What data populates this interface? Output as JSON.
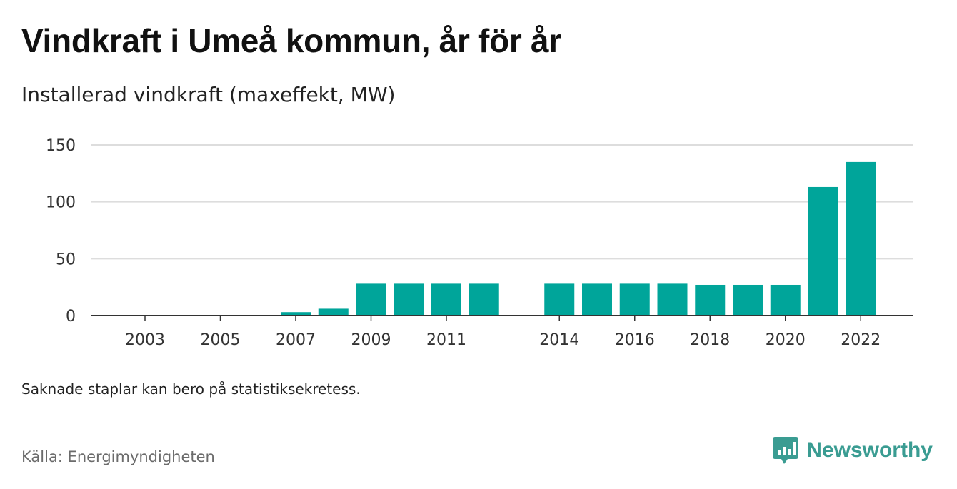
{
  "header": {
    "title": "Vindkraft i Umeå kommun, år för år",
    "subtitle": "Installerad vindkraft (maxeffekt, MW)"
  },
  "footer": {
    "note": "Saknade staplar kan bero på statistiksekretess.",
    "source": "Källa: Energimyndigheten",
    "brand": "Newsworthy"
  },
  "colors": {
    "bar": "#00a59a",
    "brand": "#3a9c92",
    "grid": "#dddddd",
    "axis": "#333333"
  },
  "chart_data": {
    "type": "bar",
    "categories": [
      "2003",
      "2004",
      "2005",
      "2006",
      "2007",
      "2008",
      "2009",
      "2010",
      "2011",
      "2012",
      "2014",
      "2015",
      "2016",
      "2017",
      "2018",
      "2019",
      "2020",
      "2021",
      "2022"
    ],
    "values": [
      0,
      0,
      0,
      0,
      3,
      6,
      28,
      28,
      28,
      28,
      28,
      28,
      28,
      28,
      27,
      27,
      27,
      113,
      135
    ],
    "x_tick_labels": [
      "2003",
      "2005",
      "2007",
      "2009",
      "2011",
      "2014",
      "2016",
      "2018",
      "2020",
      "2022"
    ],
    "ylim": [
      0,
      150
    ],
    "yticks": [
      0,
      50,
      100,
      150
    ],
    "title": "Vindkraft i Umeå kommun, år för år",
    "subtitle": "Installerad vindkraft (maxeffekt, MW)",
    "xlabel": "",
    "ylabel": "",
    "grid": true,
    "legend": "none"
  }
}
